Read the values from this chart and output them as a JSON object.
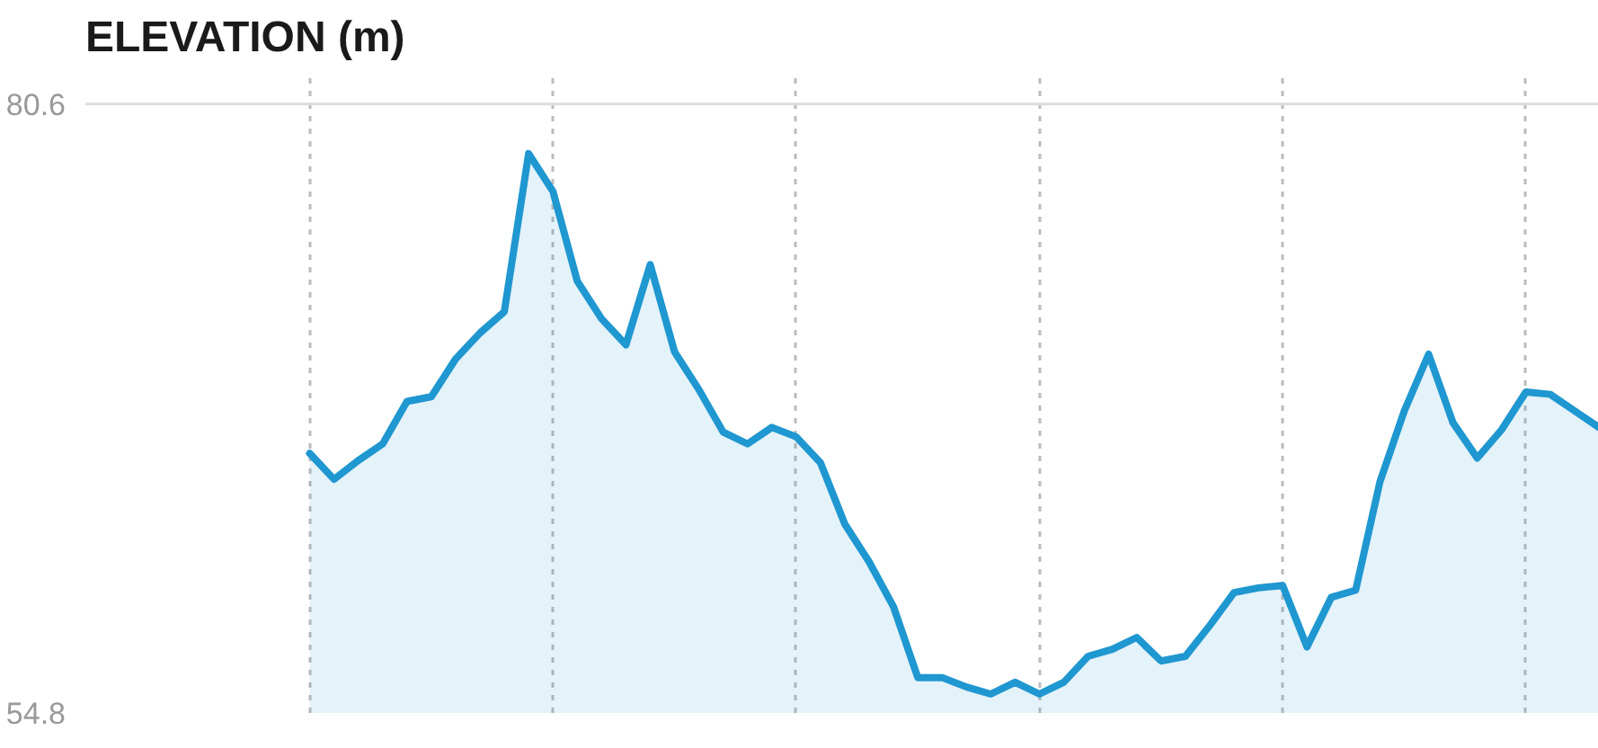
{
  "chart_data": {
    "type": "area",
    "title": "ELEVATION (m)",
    "categories": [
      null,
      null,
      null,
      null,
      null,
      null,
      null,
      null,
      null,
      null,
      null,
      null,
      null,
      null,
      null,
      null,
      null,
      null,
      null,
      null,
      null,
      null,
      null,
      null,
      null,
      null,
      null,
      null,
      null,
      null,
      null,
      null,
      null,
      null,
      null,
      null,
      null,
      null,
      null,
      null,
      null,
      null,
      null,
      null,
      null,
      null,
      null,
      null,
      null,
      null,
      null,
      null,
      null,
      null
    ],
    "series": [
      {
        "color": "#1f97d0",
        "values": [
          65.8,
          64.7,
          65.5,
          66.2,
          68.0,
          68.2,
          69.8,
          70.9,
          71.8,
          78.5,
          76.9,
          73.1,
          71.5,
          70.4,
          73.8,
          70.1,
          68.5,
          66.7,
          66.2,
          66.9,
          66.5,
          65.4,
          62.8,
          61.2,
          59.3,
          56.3,
          56.3,
          55.9,
          55.6,
          56.1,
          55.6,
          56.1,
          57.2,
          57.5,
          58.0,
          57.0,
          57.2,
          58.5,
          59.9,
          60.1,
          60.2,
          57.6,
          59.7,
          60.0,
          64.6,
          67.6,
          70.0,
          67.1,
          65.6,
          66.8,
          68.4,
          68.3,
          67.6,
          66.9
        ]
      }
    ],
    "ylim": [
      54.8,
      82
    ],
    "yticks": [
      54.8,
      80.6
    ],
    "tick_labels": "y",
    "ref_lines": [
      {
        "axis": "y",
        "value": 80.6,
        "color": "#dddddd"
      }
    ],
    "grid": "x"
  }
}
